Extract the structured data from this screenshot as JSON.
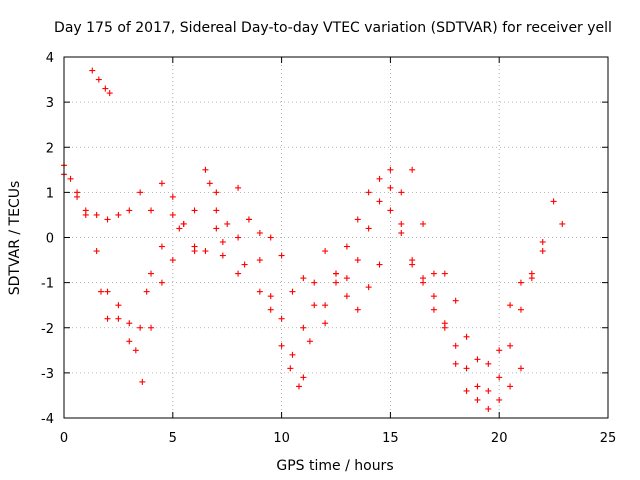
{
  "chart_data": {
    "type": "scatter",
    "title": "Day 175 of 2017, Sidereal Day-to-day VTEC variation (SDTVAR) for receiver yell",
    "xlabel": "GPS time / hours",
    "ylabel": "SDTVAR / TECUs",
    "xlim": [
      0,
      25
    ],
    "ylim": [
      -4,
      4
    ],
    "xticks": [
      0,
      5,
      10,
      15,
      20,
      25
    ],
    "yticks": [
      -4,
      -3,
      -2,
      -1,
      0,
      1,
      2,
      3,
      4
    ],
    "grid": true,
    "marker": "plus",
    "color": "#ff0000",
    "series": [
      {
        "name": "SDTVAR",
        "segments": [
          {
            "x": [
              1.3,
              1.6,
              1.9,
              2.1
            ],
            "y": [
              3.7,
              3.5,
              3.3,
              3.2
            ]
          },
          {
            "x": [
              0.0,
              0.3,
              0.6,
              1.0,
              1.5,
              2.0,
              2.5,
              3.0,
              3.5,
              4.0,
              4.5,
              5.0,
              5.5,
              6.0,
              6.5,
              7.0,
              7.5,
              8.0,
              8.5,
              9.0,
              9.5,
              10.0,
              10.5,
              11.0,
              11.5,
              12.0,
              12.5,
              13.0,
              13.5,
              14.0,
              14.5,
              15.0,
              15.5,
              16.0,
              16.5,
              17.0,
              17.5,
              18.0,
              18.5,
              19.0,
              19.5,
              20.0,
              20.5,
              21.0,
              21.5,
              22.0,
              22.5,
              22.9
            ],
            "y": [
              1.6,
              1.3,
              0.9,
              0.6,
              0.5,
              0.4,
              0.5,
              0.6,
              1.0,
              0.6,
              1.2,
              0.9,
              0.3,
              -0.2,
              1.5,
              1.0,
              0.3,
              1.1,
              0.4,
              0.1,
              0.0,
              -0.4,
              -1.2,
              -0.9,
              -1.5,
              -0.3,
              -0.8,
              -0.2,
              0.4,
              1.0,
              1.3,
              1.5,
              1.0,
              1.5,
              0.3,
              -0.8,
              -0.8,
              -1.4,
              -2.2,
              -2.7,
              -2.8,
              -2.5,
              -1.5,
              -1.0,
              -0.8,
              -0.1,
              0.8,
              0.3
            ]
          },
          {
            "x": [
              0.0,
              0.6,
              1.0,
              1.5,
              2.0,
              2.5,
              3.0,
              3.5,
              3.8,
              4.0,
              4.5,
              5.0,
              5.3,
              6.0,
              6.7,
              7.0,
              7.3,
              8.0,
              8.5,
              9.0,
              9.5,
              10.0,
              10.5,
              11.0,
              11.5,
              12.0,
              12.5,
              13.0,
              13.5,
              14.0,
              14.5,
              15.0,
              15.5,
              16.0,
              16.5,
              17.0,
              17.5,
              18.0,
              18.5,
              19.0,
              19.5,
              20.0,
              20.5,
              21.0,
              21.5,
              22.0
            ],
            "y": [
              1.4,
              1.0,
              0.5,
              -0.3,
              -1.2,
              -1.8,
              -2.3,
              -2.0,
              -1.2,
              -0.8,
              -0.2,
              0.5,
              0.2,
              -0.3,
              1.2,
              0.6,
              -0.1,
              0.0,
              0.4,
              -0.5,
              -1.3,
              -1.8,
              -2.6,
              -2.0,
              -1.0,
              -1.9,
              -0.8,
              -1.3,
              -0.5,
              0.2,
              0.8,
              1.1,
              0.3,
              -0.6,
              -1.0,
              -1.6,
              -1.9,
              -2.4,
              -2.9,
              -3.3,
              -3.4,
              -3.1,
              -2.4,
              -1.6,
              -0.9,
              -0.3
            ]
          },
          {
            "x": [
              1.7,
              2.0,
              2.5,
              3.0,
              3.3,
              3.6,
              4.0,
              4.5,
              5.0,
              5.5,
              6.0,
              6.5,
              7.0,
              7.3,
              8.0,
              8.3,
              9.0,
              9.5,
              10.0,
              10.4,
              10.8,
              11.0,
              11.3,
              12.0,
              12.5,
              13.0,
              13.5,
              14.0,
              14.5,
              15.0,
              15.5,
              16.0,
              16.5,
              17.0,
              17.5,
              18.0,
              18.5,
              19.0,
              19.5,
              20.0,
              20.5,
              21.0
            ],
            "y": [
              -1.2,
              -1.8,
              -1.5,
              -1.9,
              -2.5,
              -3.2,
              -2.0,
              -1.0,
              -0.5,
              0.3,
              0.6,
              -0.3,
              0.2,
              -0.4,
              -0.8,
              -0.6,
              -1.2,
              -1.6,
              -2.4,
              -2.9,
              -3.3,
              -3.1,
              -2.3,
              -1.5,
              -1.0,
              -0.9,
              -1.6,
              -1.1,
              -0.6,
              0.6,
              0.1,
              -0.5,
              -0.9,
              -1.3,
              -2.0,
              -2.8,
              -3.4,
              -3.6,
              -3.8,
              -3.6,
              -3.3,
              -2.9
            ]
          }
        ]
      }
    ]
  }
}
